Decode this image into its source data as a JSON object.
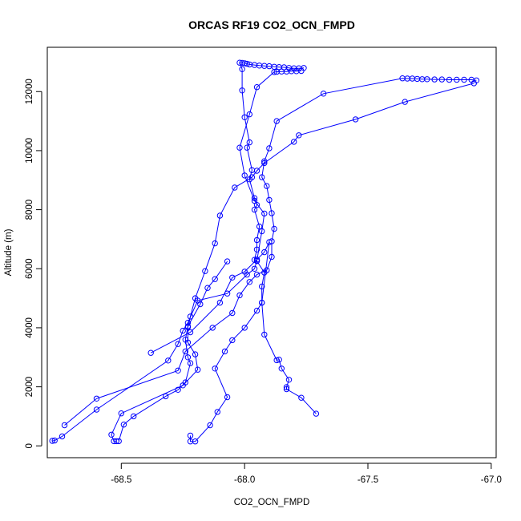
{
  "chart_data": {
    "type": "line",
    "title": "ORCAS RF19 CO2_OCN_FMPD",
    "xlabel": "CO2_OCN_FMPD",
    "ylabel": "Altitude (m)",
    "xlim": [
      -68.8,
      -66.98
    ],
    "ylim": [
      -400,
      13500
    ],
    "xticks": [
      -68.5,
      -68.0,
      -67.5,
      -67.0
    ],
    "xtick_labels": [
      "-68.5",
      "-68.0",
      "-67.5",
      "-67.0"
    ],
    "yticks": [
      0,
      2000,
      4000,
      6000,
      8000,
      10000,
      12000
    ],
    "ytick_labels": [
      "0",
      "2000",
      "4000",
      "6000",
      "8000",
      "10000",
      "12000"
    ],
    "grid": false,
    "legend": "none",
    "marker": "open-circle",
    "color": "#0000ff",
    "series": [
      {
        "points": [
          [
            -67.06,
            12380
          ],
          [
            -67.08,
            12400
          ],
          [
            -67.11,
            12400
          ],
          [
            -67.14,
            12400
          ],
          [
            -67.17,
            12400
          ],
          [
            -67.2,
            12410
          ],
          [
            -67.23,
            12410
          ],
          [
            -67.26,
            12420
          ],
          [
            -67.28,
            12420
          ],
          [
            -67.3,
            12430
          ],
          [
            -67.32,
            12440
          ],
          [
            -67.34,
            12440
          ],
          [
            -67.36,
            12450
          ],
          [
            -67.68,
            11930
          ],
          [
            -67.87,
            11000
          ],
          [
            -67.9,
            10080
          ],
          [
            -67.92,
            9640
          ],
          [
            -67.93,
            9100
          ],
          [
            -67.91,
            8800
          ],
          [
            -67.9,
            8330
          ],
          [
            -67.89,
            7880
          ],
          [
            -67.88,
            7350
          ],
          [
            -67.89,
            6930
          ],
          [
            -67.89,
            6400
          ],
          [
            -67.91,
            5950
          ],
          [
            -67.95,
            5800
          ],
          [
            -67.98,
            5550
          ],
          [
            -68.02,
            5100
          ],
          [
            -68.05,
            4500
          ],
          [
            -68.13,
            4000
          ],
          [
            -68.24,
            3200
          ],
          [
            -68.27,
            2550
          ],
          [
            -68.6,
            1600
          ],
          [
            -68.73,
            700
          ]
        ]
      },
      {
        "points": [
          [
            -67.07,
            12280
          ],
          [
            -67.35,
            11650
          ],
          [
            -67.55,
            11060
          ],
          [
            -67.78,
            10520
          ],
          [
            -67.8,
            10300
          ],
          [
            -67.92,
            9580
          ],
          [
            -67.95,
            9320
          ],
          [
            -67.97,
            9100
          ],
          [
            -68.04,
            8750
          ],
          [
            -68.1,
            7800
          ],
          [
            -68.12,
            6860
          ],
          [
            -68.16,
            5920
          ],
          [
            -68.2,
            5000
          ],
          [
            -68.22,
            4380
          ],
          [
            -68.23,
            4020
          ],
          [
            -68.23,
            3500
          ],
          [
            -68.2,
            3100
          ],
          [
            -68.19,
            2580
          ],
          [
            -68.25,
            2050
          ],
          [
            -68.5,
            1100
          ],
          [
            -68.54,
            380
          ],
          [
            -68.53,
            160
          ],
          [
            -68.52,
            160
          ]
        ]
      },
      {
        "points": [
          [
            -67.76,
            12800
          ],
          [
            -67.78,
            12790
          ],
          [
            -67.8,
            12790
          ],
          [
            -67.82,
            12800
          ],
          [
            -67.84,
            12820
          ],
          [
            -67.86,
            12830
          ],
          [
            -67.88,
            12840
          ],
          [
            -67.9,
            12860
          ],
          [
            -67.92,
            12870
          ],
          [
            -67.94,
            12880
          ],
          [
            -67.96,
            12900
          ],
          [
            -67.98,
            12920
          ],
          [
            -67.99,
            12940
          ],
          [
            -68.0,
            12960
          ],
          [
            -68.01,
            12970
          ],
          [
            -68.02,
            12980
          ],
          [
            -68.01,
            12760
          ],
          [
            -68.01,
            12040
          ],
          [
            -68.0,
            11130
          ],
          [
            -67.98,
            10280
          ],
          [
            -67.99,
            10100
          ],
          [
            -67.97,
            9340
          ],
          [
            -67.98,
            9030
          ],
          [
            -67.96,
            8390
          ],
          [
            -67.95,
            8160
          ],
          [
            -67.96,
            8000
          ],
          [
            -67.94,
            7430
          ],
          [
            -67.95,
            6970
          ],
          [
            -67.95,
            6650
          ],
          [
            -67.96,
            6300
          ],
          [
            -67.95,
            6260
          ],
          [
            -67.92,
            5870
          ],
          [
            -67.93,
            5400
          ],
          [
            -67.93,
            4850
          ],
          [
            -67.95,
            4580
          ],
          [
            -68.0,
            4000
          ],
          [
            -68.05,
            3580
          ],
          [
            -68.08,
            3200
          ],
          [
            -68.12,
            2620
          ],
          [
            -68.07,
            1650
          ],
          [
            -68.11,
            1150
          ],
          [
            -68.14,
            700
          ],
          [
            -68.2,
            150
          ],
          [
            -68.22,
            150
          ],
          [
            -68.22,
            350
          ]
        ]
      },
      {
        "points": [
          [
            -67.77,
            12700
          ],
          [
            -67.79,
            12690
          ],
          [
            -67.81,
            12690
          ],
          [
            -67.83,
            12680
          ],
          [
            -67.85,
            12680
          ],
          [
            -67.87,
            12670
          ],
          [
            -67.88,
            12660
          ],
          [
            -67.95,
            12150
          ],
          [
            -67.98,
            11230
          ],
          [
            -68.02,
            10100
          ],
          [
            -68.0,
            9160
          ],
          [
            -67.96,
            8300
          ],
          [
            -67.92,
            7870
          ],
          [
            -67.93,
            7270
          ],
          [
            -67.95,
            6270
          ],
          [
            -67.96,
            6000
          ],
          [
            -67.99,
            5800
          ],
          [
            -68.07,
            5160
          ],
          [
            -68.19,
            4920
          ],
          [
            -68.23,
            4170
          ],
          [
            -68.25,
            3900
          ],
          [
            -68.27,
            3450
          ],
          [
            -68.31,
            2890
          ],
          [
            -68.6,
            1230
          ],
          [
            -68.74,
            320
          ],
          [
            -68.77,
            180
          ],
          [
            -68.78,
            170
          ]
        ]
      },
      {
        "points": [
          [
            -68.38,
            3150
          ],
          [
            -68.22,
            3850
          ],
          [
            -68.1,
            4850
          ],
          [
            -68.05,
            5700
          ],
          [
            -68.0,
            5900
          ],
          [
            -67.95,
            6310
          ],
          [
            -67.92,
            6560
          ],
          [
            -67.9,
            6900
          ],
          [
            -67.93,
            4850
          ],
          [
            -67.92,
            3770
          ],
          [
            -67.87,
            2900
          ],
          [
            -67.86,
            2920
          ],
          [
            -67.85,
            2620
          ],
          [
            -67.82,
            2240
          ],
          [
            -67.83,
            1990
          ],
          [
            -67.83,
            1920
          ],
          [
            -67.77,
            1630
          ],
          [
            -67.71,
            1090
          ]
        ]
      },
      {
        "points": [
          [
            -68.07,
            6250
          ],
          [
            -68.12,
            5650
          ],
          [
            -68.15,
            5350
          ],
          [
            -68.18,
            4800
          ],
          [
            -68.23,
            4050
          ],
          [
            -68.24,
            3600
          ],
          [
            -68.23,
            3000
          ],
          [
            -68.22,
            2800
          ],
          [
            -68.24,
            2150
          ],
          [
            -68.27,
            1900
          ],
          [
            -68.32,
            1680
          ],
          [
            -68.45,
            1000
          ],
          [
            -68.49,
            720
          ],
          [
            -68.51,
            160
          ]
        ]
      }
    ]
  }
}
